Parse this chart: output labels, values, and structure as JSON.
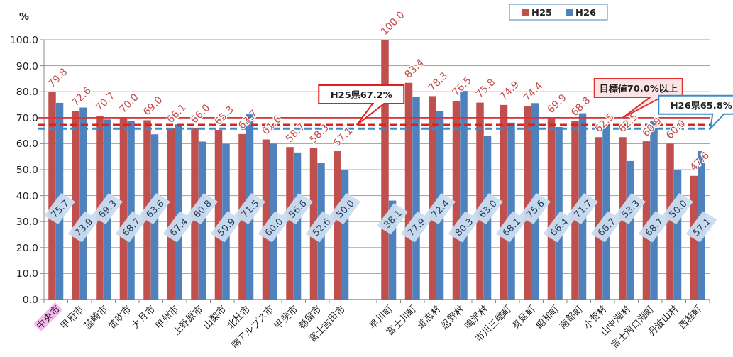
{
  "chart_data": {
    "type": "bar",
    "ylabel": "%",
    "categories": [
      "中央市",
      "甲府市",
      "韮崎市",
      "笛吹市",
      "大月市",
      "甲州市",
      "上野原市",
      "山梨市",
      "北杜市",
      "南アルプス市",
      "甲斐市",
      "都留市",
      "富士吉田市",
      null,
      "早川町",
      "富士川町",
      "道志村",
      "忍野村",
      "鳴沢村",
      "市川三郷町",
      "身延町",
      "昭和町",
      "南部町",
      "小菅村",
      "山中湖村",
      "富士河口湖町",
      "丹波山村",
      "西桂町"
    ],
    "series": [
      {
        "name": "H25",
        "color": "#c0504d",
        "values": [
          79.8,
          72.6,
          70.7,
          70.0,
          69.0,
          66.1,
          66.0,
          65.3,
          63.7,
          61.6,
          58.7,
          58.3,
          57.1,
          null,
          100.0,
          83.4,
          78.3,
          76.5,
          75.8,
          74.9,
          74.4,
          69.9,
          68.8,
          62.5,
          62.5,
          60.9,
          60.0,
          47.6
        ],
        "value_labels": [
          "79.8",
          "72.6",
          "70.7",
          "70.0",
          "69.0",
          "66.1",
          "66.0",
          "65.3",
          "63.7",
          "61.6",
          "58.7",
          "58.3",
          "57.1",
          null,
          "100.0",
          "83.4",
          "78.3",
          "76.5",
          "75.8",
          "74.9",
          "74.4",
          "69.9",
          "68.8",
          "62.5",
          "62.5",
          "60.9",
          "60.0",
          "47.6"
        ]
      },
      {
        "name": "H26",
        "color": "#4f81bd",
        "values": [
          75.7,
          73.9,
          69.3,
          68.7,
          63.6,
          67.4,
          60.8,
          59.9,
          71.5,
          60.0,
          56.6,
          52.6,
          50.0,
          null,
          38.1,
          77.9,
          72.4,
          80.3,
          63.0,
          68.1,
          75.6,
          66.4,
          71.7,
          66.7,
          53.3,
          68.7,
          50.0,
          57.1
        ],
        "value_labels": [
          "75.7",
          "73.9",
          "69.3",
          "68.7",
          "63.6",
          "67.4",
          "60.8",
          "59.9",
          "71.5",
          "60.0",
          "56.6",
          "52.6",
          "50.0",
          null,
          "38.1",
          "77.9",
          "72.4",
          "80.3",
          "63.0",
          "68.1",
          "75.6",
          "66.4",
          "71.7",
          "66.7",
          "53.3",
          "68.7",
          "50.0",
          "57.1"
        ]
      }
    ],
    "data_labels": true,
    "ylim": [
      0,
      100
    ],
    "yticks": [
      {
        "value": 0,
        "label": "0.0"
      },
      {
        "value": 10,
        "label": "10.0"
      },
      {
        "value": 20,
        "label": "20.0"
      },
      {
        "value": 30,
        "label": "30.0"
      },
      {
        "value": 40,
        "label": "40.0"
      },
      {
        "value": 50,
        "label": "50.0"
      },
      {
        "value": 60,
        "label": "60.0"
      },
      {
        "value": 70,
        "label": "70.0"
      },
      {
        "value": 80,
        "label": "80.0"
      },
      {
        "value": 90,
        "label": "90.0"
      },
      {
        "value": 100,
        "label": "100.0"
      }
    ],
    "ref_lines": [
      {
        "axis": "y",
        "value": 70.0,
        "label": "目標値70.0%以上",
        "color": "#e03030",
        "line_style": "solid"
      },
      {
        "axis": "y",
        "value": 67.2,
        "label": "H25県67.2%",
        "color": "#e02020",
        "line_style": "dashed"
      },
      {
        "axis": "y",
        "value": 65.8,
        "label": "H26県65.8%",
        "color": "#3a8cc8",
        "line_style": "dashed"
      }
    ],
    "grid": "y",
    "legend": "top"
  }
}
